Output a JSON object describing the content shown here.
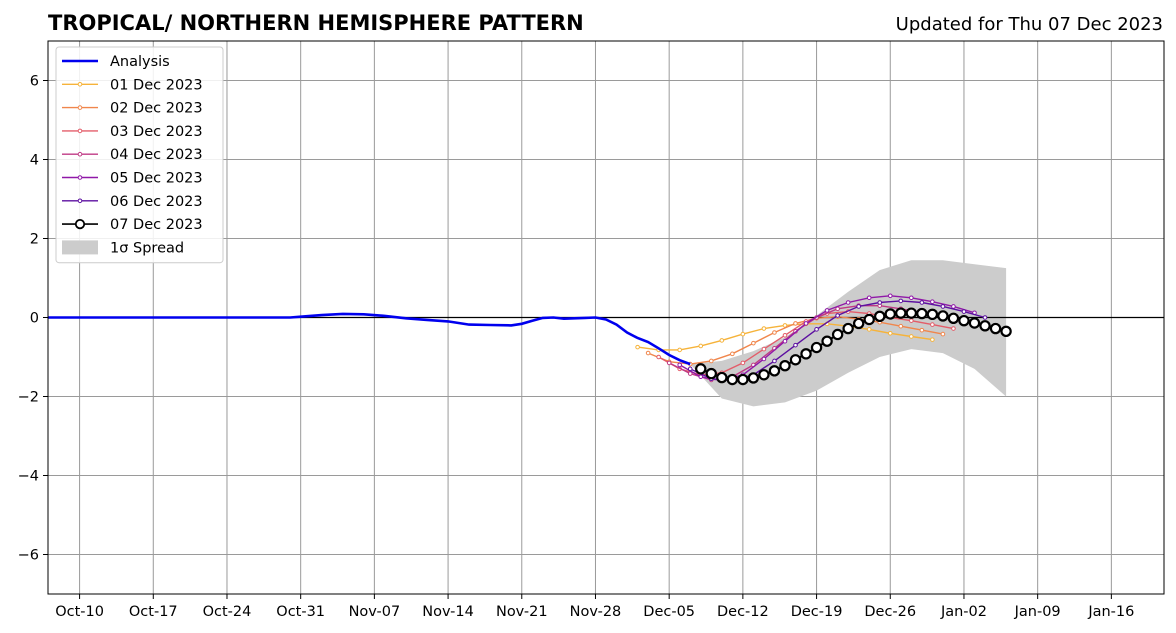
{
  "header": {
    "title": "TROPICAL/ NORTHERN HEMISPHERE PATTERN",
    "updated": "Updated for Thu 07 Dec 2023"
  },
  "chart_data": {
    "type": "line",
    "title": "TROPICAL/ NORTHERN HEMISPHERE PATTERN",
    "xlabel": "",
    "ylabel": "",
    "xlim": [
      "2023-10-07",
      "2024-01-21"
    ],
    "ylim": [
      -7,
      7
    ],
    "grid": true,
    "legend_position": "upper-left",
    "x_ticks": [
      {
        "date": "2023-10-10",
        "label": "Oct-10"
      },
      {
        "date": "2023-10-17",
        "label": "Oct-17"
      },
      {
        "date": "2023-10-24",
        "label": "Oct-24"
      },
      {
        "date": "2023-10-31",
        "label": "Oct-31"
      },
      {
        "date": "2023-11-07",
        "label": "Nov-07"
      },
      {
        "date": "2023-11-14",
        "label": "Nov-14"
      },
      {
        "date": "2023-11-21",
        "label": "Nov-21"
      },
      {
        "date": "2023-11-28",
        "label": "Nov-28"
      },
      {
        "date": "2023-12-05",
        "label": "Dec-05"
      },
      {
        "date": "2023-12-12",
        "label": "Dec-12"
      },
      {
        "date": "2023-12-19",
        "label": "Dec-19"
      },
      {
        "date": "2023-12-26",
        "label": "Dec-26"
      },
      {
        "date": "2024-01-02",
        "label": "Jan-02"
      },
      {
        "date": "2024-01-09",
        "label": "Jan-09"
      },
      {
        "date": "2024-01-16",
        "label": "Jan-16"
      }
    ],
    "y_ticks": [
      {
        "value": 6,
        "label": "6"
      },
      {
        "value": 4,
        "label": "4"
      },
      {
        "value": 2,
        "label": "2"
      },
      {
        "value": 0,
        "label": "0"
      },
      {
        "value": -2,
        "label": "−2"
      },
      {
        "value": -4,
        "label": "−4"
      },
      {
        "value": -6,
        "label": "−6"
      }
    ],
    "analysis": {
      "name": "Analysis",
      "color": "#0000ee",
      "points": [
        [
          "2023-10-07",
          0.0
        ],
        [
          "2023-10-20",
          0.0
        ],
        [
          "2023-10-30",
          0.0
        ],
        [
          "2023-10-31",
          0.02
        ],
        [
          "2023-11-02",
          0.06
        ],
        [
          "2023-11-04",
          0.09
        ],
        [
          "2023-11-06",
          0.08
        ],
        [
          "2023-11-08",
          0.04
        ],
        [
          "2023-11-10",
          -0.02
        ],
        [
          "2023-11-12",
          -0.06
        ],
        [
          "2023-11-14",
          -0.1
        ],
        [
          "2023-11-16",
          -0.18
        ],
        [
          "2023-11-18",
          -0.19
        ],
        [
          "2023-11-20",
          -0.2
        ],
        [
          "2023-11-21",
          -0.16
        ],
        [
          "2023-11-22",
          -0.08
        ],
        [
          "2023-11-23",
          -0.01
        ],
        [
          "2023-11-24",
          0.0
        ],
        [
          "2023-11-25",
          -0.03
        ],
        [
          "2023-11-26",
          -0.02
        ],
        [
          "2023-11-27",
          -0.01
        ],
        [
          "2023-11-28",
          0.0
        ],
        [
          "2023-11-29",
          -0.05
        ],
        [
          "2023-11-30",
          -0.18
        ],
        [
          "2023-12-01",
          -0.38
        ],
        [
          "2023-12-02",
          -0.52
        ],
        [
          "2023-12-03",
          -0.62
        ],
        [
          "2023-12-04",
          -0.78
        ],
        [
          "2023-12-05",
          -0.95
        ],
        [
          "2023-12-06",
          -1.08
        ],
        [
          "2023-12-07",
          -1.18
        ]
      ]
    },
    "spread": {
      "label": "1σ Spread",
      "color": "#cccccc",
      "upper": [
        [
          "2023-12-07",
          -1.18
        ],
        [
          "2023-12-10",
          -1.1
        ],
        [
          "2023-12-13",
          -0.85
        ],
        [
          "2023-12-16",
          -0.5
        ],
        [
          "2023-12-19",
          0.05
        ],
        [
          "2023-12-22",
          0.65
        ],
        [
          "2023-12-25",
          1.2
        ],
        [
          "2023-12-28",
          1.45
        ],
        [
          "2023-12-31",
          1.45
        ],
        [
          "2024-01-03",
          1.35
        ],
        [
          "2024-01-06",
          1.25
        ]
      ],
      "lower": [
        [
          "2023-12-07",
          -1.18
        ],
        [
          "2023-12-10",
          -2.05
        ],
        [
          "2023-12-13",
          -2.25
        ],
        [
          "2023-12-16",
          -2.15
        ],
        [
          "2023-12-19",
          -1.85
        ],
        [
          "2023-12-22",
          -1.4
        ],
        [
          "2023-12-25",
          -1.0
        ],
        [
          "2023-12-28",
          -0.8
        ],
        [
          "2023-12-31",
          -0.9
        ],
        [
          "2024-01-03",
          -1.3
        ],
        [
          "2024-01-06",
          -2.0
        ]
      ]
    },
    "series": [
      {
        "name": "01 Dec 2023",
        "color": "#f6b33a",
        "x": [
          "2023-12-02",
          "2023-12-04",
          "2023-12-06",
          "2023-12-08",
          "2023-12-10",
          "2023-12-12",
          "2023-12-14",
          "2023-12-16",
          "2023-12-18",
          "2023-12-20",
          "2023-12-22",
          "2023-12-24",
          "2023-12-26",
          "2023-12-28",
          "2023-12-30"
        ],
        "y": [
          -0.75,
          -0.82,
          -0.82,
          -0.72,
          -0.58,
          -0.42,
          -0.28,
          -0.2,
          -0.16,
          -0.16,
          -0.22,
          -0.3,
          -0.4,
          -0.48,
          -0.56
        ]
      },
      {
        "name": "02 Dec 2023",
        "color": "#f0864c",
        "x": [
          "2023-12-03",
          "2023-12-05",
          "2023-12-07",
          "2023-12-09",
          "2023-12-11",
          "2023-12-13",
          "2023-12-15",
          "2023-12-17",
          "2023-12-19",
          "2023-12-21",
          "2023-12-23",
          "2023-12-25",
          "2023-12-27",
          "2023-12-29",
          "2023-12-31"
        ],
        "y": [
          -0.9,
          -1.12,
          -1.18,
          -1.1,
          -0.92,
          -0.65,
          -0.38,
          -0.15,
          -0.02,
          0.02,
          -0.04,
          -0.12,
          -0.22,
          -0.32,
          -0.42
        ]
      },
      {
        "name": "03 Dec 2023",
        "color": "#e35d6a",
        "x": [
          "2023-12-04",
          "2023-12-06",
          "2023-12-08",
          "2023-12-10",
          "2023-12-12",
          "2023-12-14",
          "2023-12-16",
          "2023-12-18",
          "2023-12-20",
          "2023-12-22",
          "2023-12-24",
          "2023-12-26",
          "2023-12-28",
          "2023-12-30",
          "2024-01-01"
        ],
        "y": [
          -1.0,
          -1.3,
          -1.45,
          -1.4,
          -1.15,
          -0.8,
          -0.45,
          -0.1,
          0.1,
          0.15,
          0.1,
          0.0,
          -0.08,
          -0.18,
          -0.28
        ]
      },
      {
        "name": "04 Dec 2023",
        "color": "#bf3984",
        "x": [
          "2023-12-05",
          "2023-12-07",
          "2023-12-09",
          "2023-12-11",
          "2023-12-13",
          "2023-12-15",
          "2023-12-17",
          "2023-12-19",
          "2023-12-21",
          "2023-12-23",
          "2023-12-25",
          "2023-12-27",
          "2023-12-29",
          "2023-12-31",
          "2024-01-02"
        ],
        "y": [
          -1.15,
          -1.42,
          -1.58,
          -1.5,
          -1.2,
          -0.78,
          -0.35,
          0.0,
          0.22,
          0.3,
          0.3,
          0.22,
          0.12,
          0.02,
          -0.08
        ]
      },
      {
        "name": "05 Dec 2023",
        "color": "#9018a8",
        "x": [
          "2023-12-06",
          "2023-12-08",
          "2023-12-10",
          "2023-12-12",
          "2023-12-14",
          "2023-12-16",
          "2023-12-18",
          "2023-12-20",
          "2023-12-22",
          "2023-12-24",
          "2023-12-26",
          "2023-12-28",
          "2023-12-30",
          "2024-01-01",
          "2024-01-03"
        ],
        "y": [
          -1.2,
          -1.5,
          -1.6,
          -1.45,
          -1.05,
          -0.6,
          -0.15,
          0.18,
          0.38,
          0.5,
          0.55,
          0.5,
          0.4,
          0.28,
          0.12
        ]
      },
      {
        "name": "06 Dec 2023",
        "color": "#5c0fa0",
        "x": [
          "2023-12-07",
          "2023-12-09",
          "2023-12-11",
          "2023-12-13",
          "2023-12-15",
          "2023-12-17",
          "2023-12-19",
          "2023-12-21",
          "2023-12-23",
          "2023-12-25",
          "2023-12-27",
          "2023-12-29",
          "2023-12-31",
          "2024-01-02",
          "2024-01-04"
        ],
        "y": [
          -1.3,
          -1.55,
          -1.6,
          -1.45,
          -1.1,
          -0.7,
          -0.3,
          0.05,
          0.28,
          0.38,
          0.42,
          0.38,
          0.28,
          0.15,
          0.0
        ]
      },
      {
        "name": "07 Dec 2023",
        "color": "#000000",
        "x": [
          "2023-12-08",
          "2023-12-09",
          "2023-12-10",
          "2023-12-11",
          "2023-12-12",
          "2023-12-13",
          "2023-12-14",
          "2023-12-15",
          "2023-12-16",
          "2023-12-17",
          "2023-12-18",
          "2023-12-19",
          "2023-12-20",
          "2023-12-21",
          "2023-12-22",
          "2023-12-23",
          "2023-12-24",
          "2023-12-25",
          "2023-12-26",
          "2023-12-27",
          "2023-12-28",
          "2023-12-29",
          "2023-12-30",
          "2023-12-31",
          "2024-01-01",
          "2024-01-02",
          "2024-01-03",
          "2024-01-04",
          "2024-01-05",
          "2024-01-06"
        ],
        "y": [
          -1.3,
          -1.42,
          -1.52,
          -1.57,
          -1.57,
          -1.53,
          -1.45,
          -1.35,
          -1.22,
          -1.07,
          -0.92,
          -0.76,
          -0.6,
          -0.43,
          -0.28,
          -0.15,
          -0.05,
          0.03,
          0.09,
          0.11,
          0.11,
          0.1,
          0.08,
          0.04,
          -0.02,
          -0.08,
          -0.14,
          -0.21,
          -0.28,
          -0.35
        ]
      }
    ],
    "zero_line": true
  }
}
